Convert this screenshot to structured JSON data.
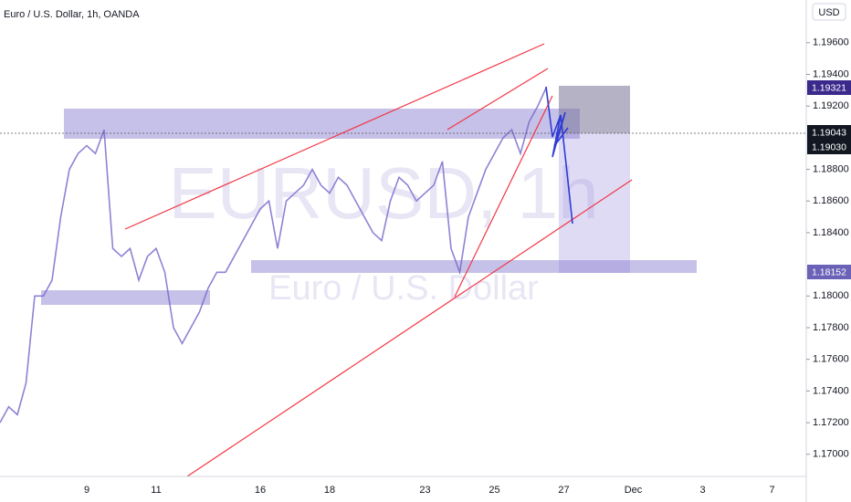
{
  "chart_data": {
    "type": "line",
    "title": "Euro / U.S. Dollar, 1h, OANDA",
    "watermark": "EURUSD, 1h",
    "watermark_subtitle": "Euro / U.S. Dollar",
    "currency": "USD",
    "price_labels": [
      "1.19321",
      "1.19043",
      "1.19030",
      "1.18152"
    ],
    "categories": [
      null,
      null,
      null,
      null,
      null,
      null,
      null,
      null,
      null,
      null,
      "9",
      null,
      null,
      null,
      null,
      null,
      null,
      null,
      "11",
      null,
      null,
      null,
      null,
      null,
      null,
      null,
      null,
      null,
      null,
      null,
      "16",
      null,
      null,
      null,
      null,
      null,
      null,
      null,
      "18",
      null,
      null,
      null,
      null,
      null,
      null,
      null,
      null,
      null,
      null,
      "23",
      null,
      null,
      null,
      null,
      null,
      null,
      null,
      "25",
      null,
      null,
      null,
      null,
      null,
      null,
      null,
      "27",
      null,
      null,
      null,
      null,
      null,
      null,
      null,
      "Dec",
      null,
      null,
      null,
      null,
      null,
      null,
      null,
      "3",
      null,
      null,
      null,
      null,
      null,
      null,
      null,
      "7",
      null,
      null,
      null
    ],
    "values": [
      1.172,
      1.173,
      1.1725,
      1.1745,
      1.18,
      1.18,
      1.181,
      1.185,
      1.188,
      1.189,
      1.1895,
      1.189,
      1.1905,
      1.183,
      1.1825,
      1.183,
      1.181,
      1.1825,
      1.183,
      1.1815,
      1.178,
      1.177,
      1.178,
      1.179,
      1.1805,
      1.1815,
      1.1815,
      1.1825,
      1.1835,
      1.1845,
      1.1855,
      1.186,
      1.183,
      1.186,
      1.1865,
      1.187,
      1.188,
      1.187,
      1.1865,
      1.1875,
      1.187,
      1.186,
      1.185,
      1.184,
      1.1835,
      1.186,
      1.1875,
      1.187,
      1.186,
      1.1865,
      1.187,
      1.1885,
      1.183,
      1.1815,
      1.185,
      1.1865,
      1.188,
      1.189,
      1.19,
      1.1905,
      1.189,
      1.191,
      1.192,
      1.1932,
      null,
      null,
      null,
      null,
      null,
      null,
      null,
      null,
      null,
      null,
      null,
      null,
      null,
      null,
      null,
      null,
      null,
      null,
      null,
      null,
      null,
      null,
      null,
      null,
      null,
      null,
      null,
      null,
      null
    ],
    "color": "#8f82d4",
    "ylim": [
      1.1686,
      1.1987
    ],
    "yticks": [
      {
        "value": 1.17,
        "label": "1.17000"
      },
      {
        "value": 1.172,
        "label": "1.17200"
      },
      {
        "value": 1.174,
        "label": "1.17400"
      },
      {
        "value": 1.176,
        "label": "1.17600"
      },
      {
        "value": 1.178,
        "label": "1.17800"
      },
      {
        "value": 1.18,
        "label": "1.18000"
      },
      {
        "value": 1.184,
        "label": "1.18400"
      },
      {
        "value": 1.186,
        "label": "1.18600"
      },
      {
        "value": 1.188,
        "label": "1.18800"
      },
      {
        "value": 1.192,
        "label": "1.19200"
      },
      {
        "value": 1.194,
        "label": "1.19400"
      },
      {
        "value": 1.196,
        "label": "1.19600"
      }
    ]
  }
}
